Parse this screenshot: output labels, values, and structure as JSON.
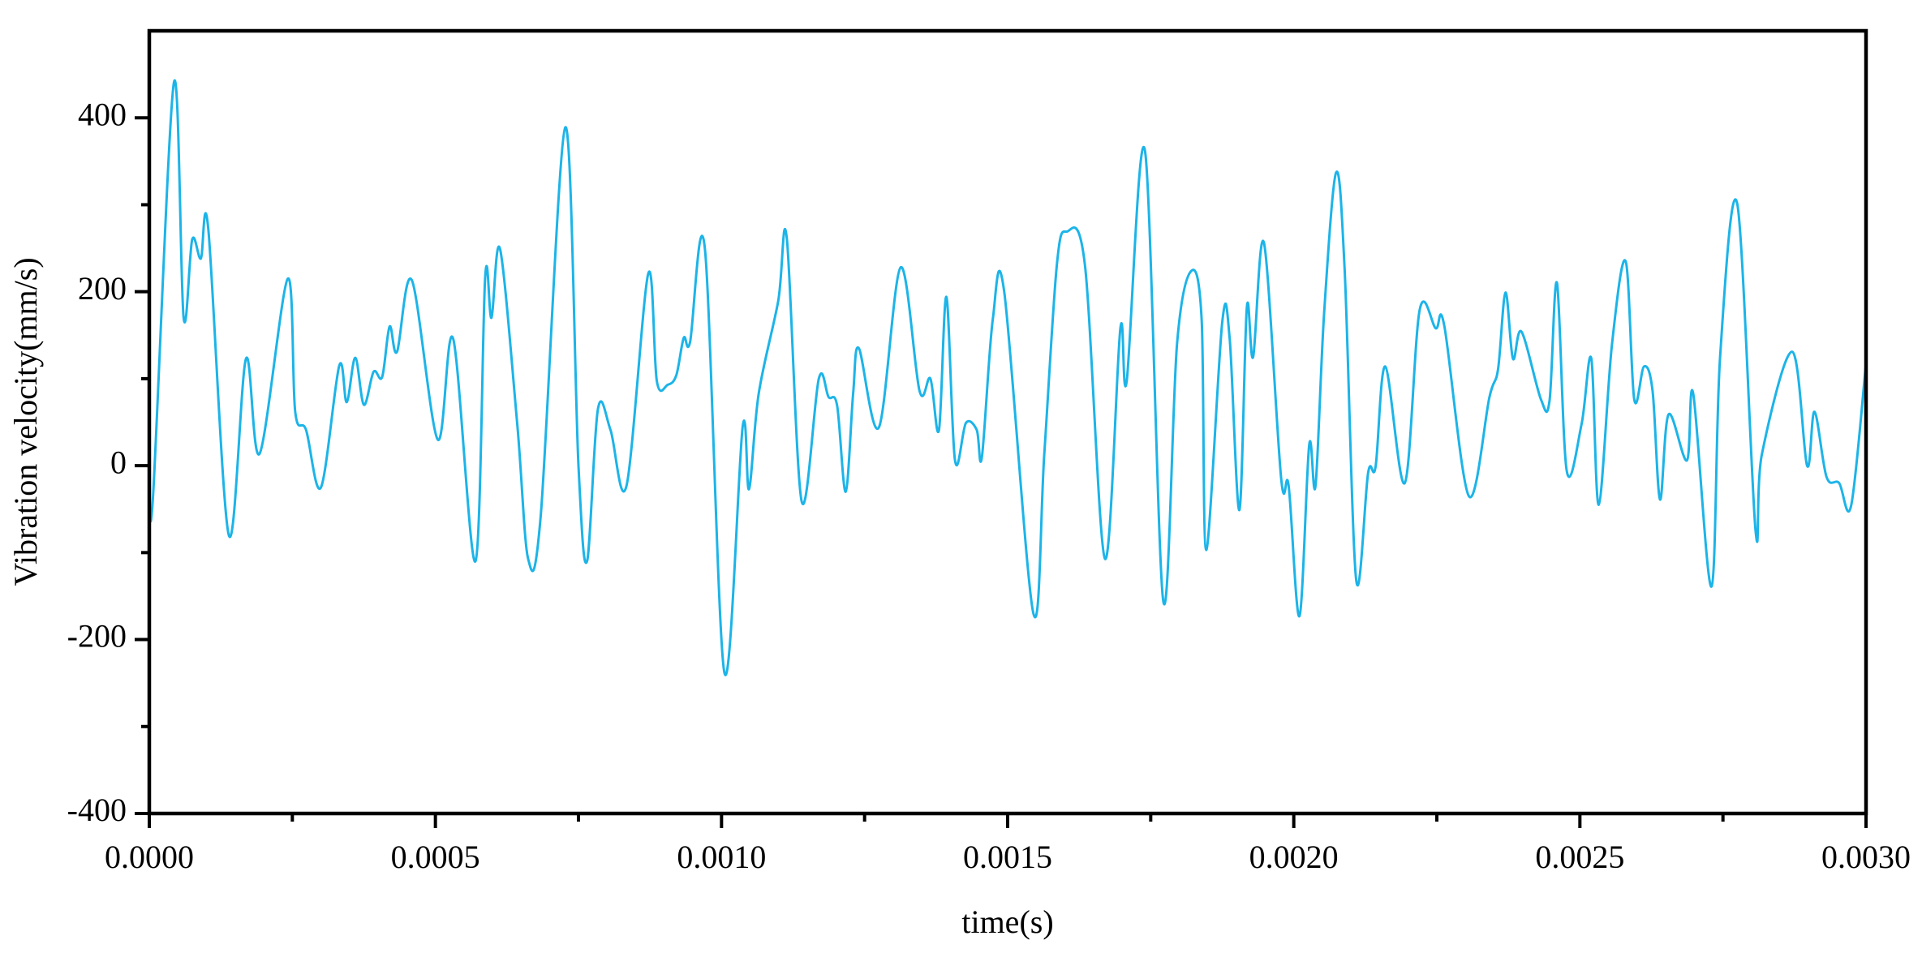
{
  "chart_data": {
    "type": "line",
    "x_label": "time(s)",
    "y_label": "Vibration velocity(mm/s)",
    "color": "#1cb4e8",
    "xlim": [
      0,
      0.003
    ],
    "ylim": [
      -400,
      500
    ],
    "xticks": [
      {
        "value": 0,
        "label": "0.0000"
      },
      {
        "value": 0.0005,
        "label": "0.0005"
      },
      {
        "value": 0.001,
        "label": "0.0010"
      },
      {
        "value": 0.0015,
        "label": "0.0015"
      },
      {
        "value": 0.002,
        "label": "0.0020"
      },
      {
        "value": 0.0025,
        "label": "0.0025"
      },
      {
        "value": 0.003,
        "label": "0.0030"
      }
    ],
    "xminorticks": [
      0.00025,
      0.00075,
      0.00125,
      0.00175,
      0.00225,
      0.00275
    ],
    "yticks": [
      -400,
      -200,
      0,
      200,
      400
    ],
    "yminorticks": [
      -300,
      -100,
      100,
      300
    ],
    "x": [
      0,
      6.4e-06,
      4.29e-05,
      6e-05,
      7.5e-05,
      9e-05,
      0.000103,
      0.000139,
      0.000169,
      0.000193,
      0.000242,
      0.000255,
      0.000274,
      0.0003,
      0.000332,
      0.000345,
      0.00036,
      0.000375,
      0.000392,
      0.000407,
      0.00042,
      0.000433,
      0.000459,
      0.000504,
      0.000531,
      0.00057,
      0.000587,
      0.000598,
      0.000613,
      0.000643,
      0.000662,
      0.000684,
      0.000727,
      0.00075,
      0.000765,
      0.000784,
      0.000806,
      0.000834,
      0.000872,
      0.000887,
      0.000906,
      0.000921,
      0.000934,
      0.000945,
      0.000971,
      0.001005,
      0.001037,
      0.001048,
      0.001065,
      0.001099,
      0.001114,
      0.00114,
      0.00117,
      0.001187,
      0.001202,
      0.001217,
      0.00123,
      0.00124,
      0.001275,
      0.001313,
      0.001346,
      0.001365,
      0.00138,
      0.001393,
      0.001408,
      0.001427,
      0.001446,
      0.001455,
      0.001474,
      0.001494,
      0.001545,
      0.001564,
      0.001586,
      0.001603,
      0.001635,
      0.00167,
      0.001697,
      0.001708,
      0.00174,
      0.001772,
      0.001796,
      0.001821,
      0.001839,
      0.001847,
      0.001875,
      0.001888,
      0.001905,
      0.001918,
      0.001929,
      0.001948,
      0.001978,
      0.001991,
      0.00201,
      0.002027,
      0.002038,
      0.002053,
      0.002074,
      0.002089,
      0.002109,
      0.00213,
      0.002143,
      0.00216,
      0.002194,
      0.00222,
      0.002248,
      0.002263,
      0.002306,
      0.002342,
      0.002357,
      0.00237,
      0.002383,
      0.002398,
      0.002432,
      0.002447,
      0.00246,
      0.002477,
      0.002503,
      0.00252,
      0.002533,
      0.002556,
      0.00258,
      0.002595,
      0.002612,
      0.002627,
      0.00264,
      0.002655,
      0.002687,
      0.002698,
      0.00273,
      0.002745,
      0.002775,
      0.002807,
      0.002818,
      0.002871,
      0.002897,
      0.00291,
      0.002931,
      0.002953,
      0.002974,
      0.003
    ],
    "values": [
      -5,
      -37,
      440,
      170,
      260,
      238,
      273,
      -80,
      123,
      14,
      215,
      62,
      41,
      -25,
      115,
      73,
      124,
      70,
      108,
      102,
      160,
      131,
      213,
      30,
      146,
      -110,
      217,
      170,
      249,
      48,
      -107,
      -58,
      389,
      0,
      -110,
      65,
      41,
      -23,
      221,
      97,
      93,
      104,
      147,
      142,
      249,
      -238,
      45,
      -27,
      83,
      189,
      262,
      -41,
      100,
      79,
      69,
      -30,
      83,
      135,
      44,
      228,
      86,
      100,
      41,
      194,
      6,
      49,
      41,
      10,
      168,
      200,
      -170,
      13,
      231,
      269,
      231,
      -107,
      158,
      97,
      362,
      -156,
      140,
      224,
      168,
      -97,
      165,
      146,
      -51,
      182,
      125,
      256,
      -15,
      -23,
      -173,
      24,
      -23,
      175,
      337,
      224,
      -131,
      -8,
      -1,
      114,
      -20,
      179,
      158,
      161,
      -35,
      79,
      111,
      199,
      123,
      154,
      76,
      75,
      210,
      -6,
      48,
      123,
      -45,
      139,
      235,
      76,
      114,
      86,
      -39,
      59,
      6,
      83,
      -139,
      125,
      301,
      -75,
      13,
      131,
      0,
      62,
      -13,
      -20,
      -46,
      118
    ]
  }
}
